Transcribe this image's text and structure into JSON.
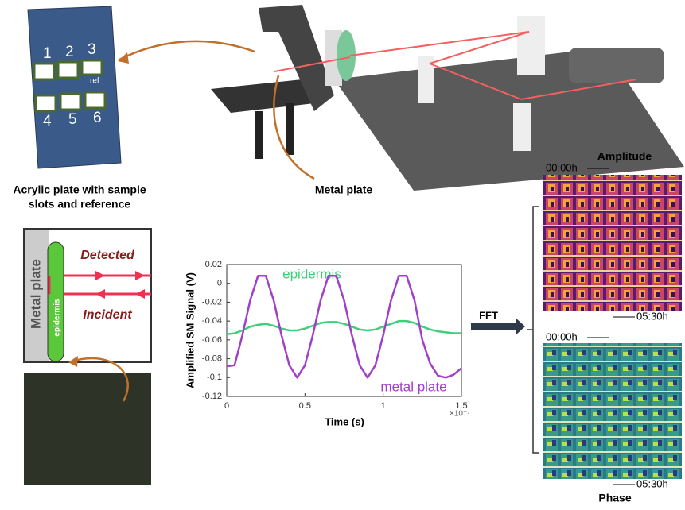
{
  "figure": {
    "acrylic_plate": {
      "slots": [
        "1",
        "2",
        "3",
        "4",
        "5",
        "6"
      ],
      "ref": "ref",
      "caption": [
        "Acrylic plate with sample",
        "slots and reference"
      ]
    },
    "setup_label": "Metal plate",
    "schematic": {
      "metal_plate": "Metal plate",
      "epidermis": "epidermis",
      "detected": "Detected",
      "incident": "Incident"
    },
    "fft": "FFT",
    "amplitude": {
      "title": "Amplitude",
      "start": "00:00h",
      "end": "05:30h"
    },
    "phase": {
      "title": "Phase",
      "start": "00:00h",
      "end": "05:30h"
    }
  },
  "chart_data": {
    "type": "line",
    "xlabel": "Time (s)",
    "ylabel": "Amplified SM Signal (V)",
    "x_multiplier": "×10⁻⁷",
    "x": [
      0,
      0.05,
      0.1,
      0.15,
      0.2,
      0.25,
      0.3,
      0.35,
      0.4,
      0.45,
      0.5,
      0.55,
      0.6,
      0.65,
      0.7,
      0.75,
      0.8,
      0.85,
      0.9,
      0.95,
      1,
      1.05,
      1.1,
      1.15,
      1.2,
      1.25,
      1.3,
      1.35,
      1.4,
      1.45,
      1.5
    ],
    "series": [
      {
        "name": "epidermis",
        "color": "#3ecf7a",
        "values": [
          -0.054,
          -0.053,
          -0.05,
          -0.046,
          -0.044,
          -0.043,
          -0.045,
          -0.048,
          -0.05,
          -0.05,
          -0.048,
          -0.045,
          -0.042,
          -0.041,
          -0.041,
          -0.043,
          -0.046,
          -0.049,
          -0.05,
          -0.049,
          -0.046,
          -0.043,
          -0.04,
          -0.04,
          -0.042,
          -0.046,
          -0.049,
          -0.051,
          -0.052,
          -0.053,
          -0.053
        ]
      },
      {
        "name": "metal plate",
        "color": "#a040c8",
        "values": [
          -0.088,
          -0.087,
          -0.055,
          -0.018,
          0.008,
          0.008,
          -0.018,
          -0.055,
          -0.087,
          -0.1,
          -0.087,
          -0.055,
          -0.018,
          0.008,
          0.008,
          -0.018,
          -0.055,
          -0.087,
          -0.1,
          -0.087,
          -0.055,
          -0.018,
          0.008,
          0.008,
          -0.018,
          -0.06,
          -0.085,
          -0.098,
          -0.1,
          -0.097,
          -0.09
        ]
      }
    ],
    "xlim": [
      0,
      1.5
    ],
    "ylim": [
      -0.12,
      0.02
    ],
    "xticks": [
      0,
      0.5,
      1,
      1.5
    ],
    "yticks": [
      0.02,
      0,
      -0.02,
      -0.04,
      -0.06,
      -0.08,
      -0.1,
      -0.12
    ],
    "grid": false
  }
}
